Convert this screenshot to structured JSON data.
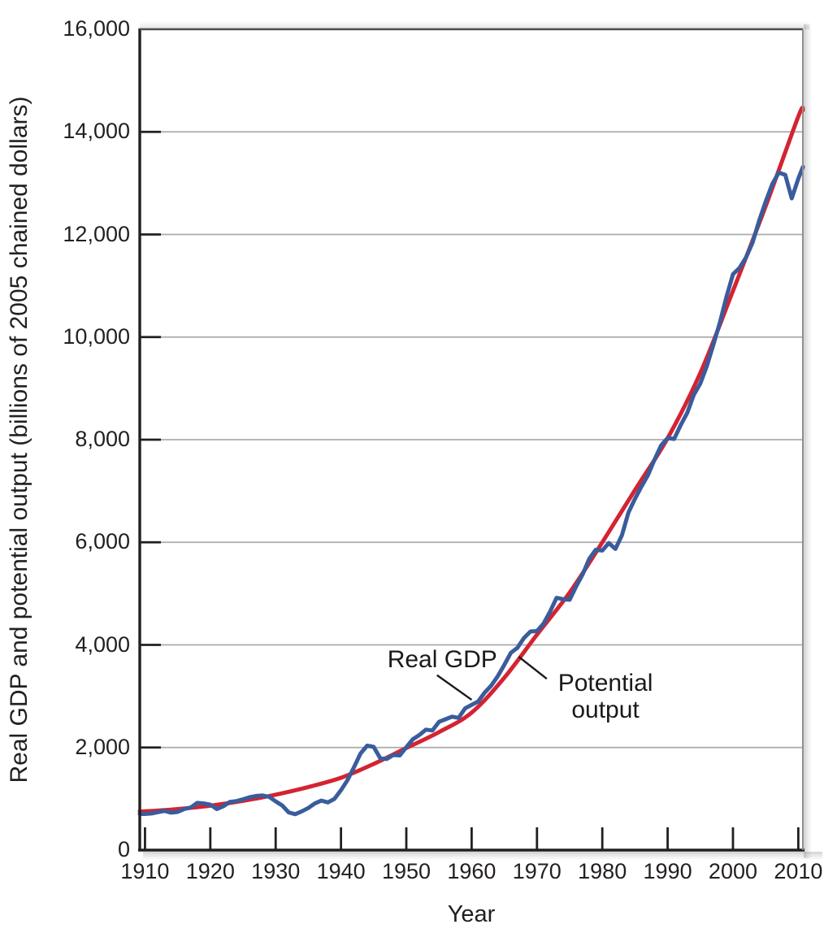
{
  "chart_data": {
    "type": "line",
    "title": "",
    "xlabel": "Year",
    "ylabel": "Real GDP and potential output (billions of 2005 chained dollars)",
    "xlim": [
      1909.2,
      2010.7
    ],
    "ylim": [
      0,
      16000
    ],
    "grid": "horizontal gray lines at each 2,000",
    "legend_position": "none (inline callout annotations)",
    "x_ticks": [
      1910,
      1920,
      1930,
      1940,
      1950,
      1960,
      1970,
      1980,
      1990,
      2000,
      2010
    ],
    "x_tick_labels": [
      "1910",
      "1920",
      "1930",
      "1940",
      "1950",
      "1960",
      "1970",
      "1980",
      "1990",
      "2000",
      "2010"
    ],
    "y_ticks": [
      0,
      2000,
      4000,
      6000,
      8000,
      10000,
      12000,
      14000,
      16000
    ],
    "y_tick_labels": [
      "0",
      "2,000",
      "4,000",
      "6,000",
      "8,000",
      "10,000",
      "12,000",
      "14,000",
      "16,000"
    ],
    "style": {
      "grid_color": "#ababab",
      "axis_color": "#231f20",
      "text_color": "#231f20",
      "callout_color": "#1a1a1a",
      "real_gdp_color": "#3a5c9c",
      "potential_color": "#d42332"
    },
    "series": [
      {
        "name": "Real GDP",
        "color": "#3a5c9c",
        "line_width": 5,
        "x_start": 1910,
        "x_step": 1,
        "values": [
          705,
          715,
          740,
          765,
          730,
          745,
          800,
          830,
          920,
          910,
          885,
          800,
          855,
          940,
          955,
          990,
          1030,
          1055,
          1065,
          1040,
          950,
          870,
          735,
          700,
          755,
          820,
          910,
          965,
          930,
          1000,
          1167,
          1366,
          1618,
          1883,
          2035,
          2012,
          1792,
          1776,
          1854,
          1845,
          2006,
          2161,
          2244,
          2347,
          2332,
          2500,
          2550,
          2601,
          2578,
          2763,
          2831,
          2897,
          3072,
          3207,
          3392,
          3610,
          3845,
          3943,
          4133,
          4262,
          4270,
          4413,
          4648,
          4917,
          4890,
          4880,
          5141,
          5378,
          5678,
          5855,
          5839,
          5987,
          5871,
          6136,
          6577,
          6849,
          7087,
          7313,
          7614,
          7886,
          8034,
          8015,
          8287,
          8523,
          8871,
          9094,
          9434,
          9854,
          10284,
          10780,
          11226,
          11347,
          11553,
          11841,
          12264,
          12638,
          12976,
          13206,
          13162,
          12703,
          13088,
          13315
        ]
      },
      {
        "name": "Potential output",
        "color": "#d42332",
        "line_width": 5,
        "smooth": true,
        "x": [
          1910,
          1915,
          1920,
          1925,
          1930,
          1935,
          1940,
          1945,
          1950,
          1955,
          1960,
          1965,
          1970,
          1975,
          1980,
          1985,
          1990,
          1995,
          2000,
          2005,
          2010,
          2010.7
        ],
        "values": [
          755,
          800,
          865,
          960,
          1080,
          1230,
          1410,
          1680,
          1990,
          2300,
          2680,
          3360,
          4200,
          5020,
          6000,
          7020,
          8030,
          9300,
          10900,
          12550,
          14300,
          14420
        ]
      }
    ],
    "annotations": [
      {
        "id": "real-gdp",
        "lines": [
          "Real GDP"
        ],
        "align": "right",
        "label_x": 1963.9,
        "label_y": 3980,
        "pointer": {
          "x1": 1954.7,
          "y1": 3410,
          "x2": 1960.0,
          "y2": 2930
        }
      },
      {
        "id": "potential-output",
        "lines": [
          "Potential",
          "output"
        ],
        "align": "left",
        "label_x": 1971.9,
        "label_y": 3520,
        "pointer": {
          "x1": 1971.5,
          "y1": 3340,
          "x2": 1967.2,
          "y2": 3770
        }
      }
    ]
  }
}
